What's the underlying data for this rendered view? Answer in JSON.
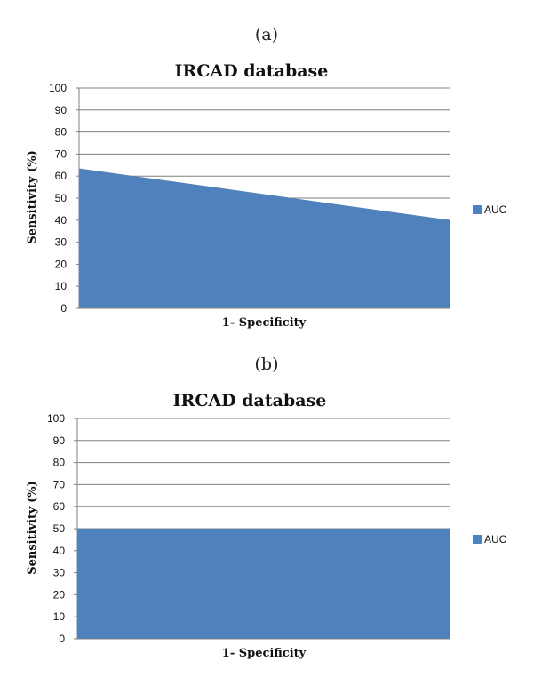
{
  "colors": {
    "area": "#4f81bd",
    "grid": "#808080",
    "axis": "#808080"
  },
  "chart_data": [
    {
      "caption": "(a)",
      "type": "area",
      "title": "IRCAD database",
      "xlabel": "1- Specificity",
      "ylabel": "Sensitivity (%)",
      "ylim": [
        0,
        100
      ],
      "yticks": [
        "0",
        "10",
        "20",
        "30",
        "40",
        "50",
        "60",
        "70",
        "80",
        "90",
        "100"
      ],
      "grid": true,
      "legend_position": "right",
      "series": [
        {
          "name": "AUC",
          "values": [
            63.5,
            40
          ]
        }
      ]
    },
    {
      "caption": "(b)",
      "type": "area",
      "title": "IRCAD database",
      "xlabel": "1- Specificity",
      "ylabel": "Sensitivity (%)",
      "ylim": [
        0,
        100
      ],
      "yticks": [
        "0",
        "10",
        "20",
        "30",
        "40",
        "50",
        "60",
        "70",
        "80",
        "90",
        "100"
      ],
      "grid": true,
      "legend_position": "right",
      "series": [
        {
          "name": "AUC",
          "values": [
            50,
            50
          ]
        }
      ]
    }
  ]
}
